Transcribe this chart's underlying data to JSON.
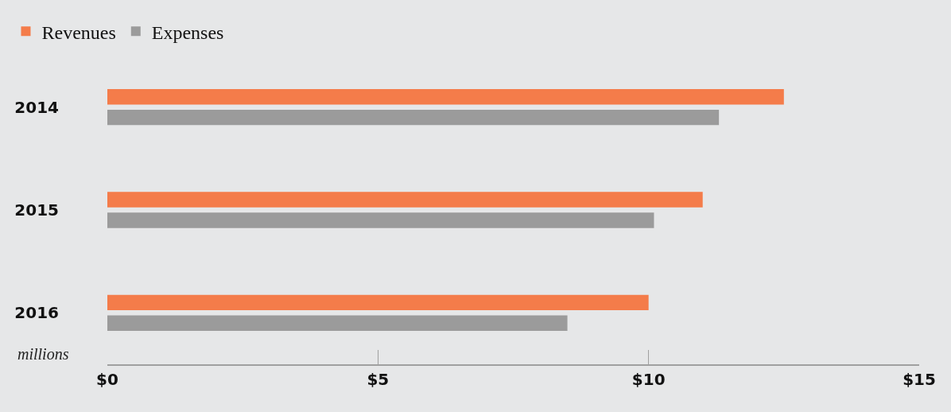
{
  "chart_data": {
    "type": "bar",
    "orientation": "horizontal",
    "categories": [
      "2014",
      "2015",
      "2016"
    ],
    "series": [
      {
        "name": "Revenues",
        "color": "#f47c4a",
        "values": [
          12.5,
          11.0,
          10.0
        ]
      },
      {
        "name": "Expenses",
        "color": "#9b9b9b",
        "values": [
          11.3,
          10.1,
          8.5
        ]
      }
    ],
    "xlim": [
      0,
      15
    ],
    "xticks": [
      {
        "value": 0,
        "label": "$0"
      },
      {
        "value": 5,
        "label": "$5"
      },
      {
        "value": 10,
        "label": "$10"
      },
      {
        "value": 15,
        "label": "$15"
      }
    ],
    "annotations": [
      "millions"
    ],
    "legend": "top left",
    "grid": false
  }
}
